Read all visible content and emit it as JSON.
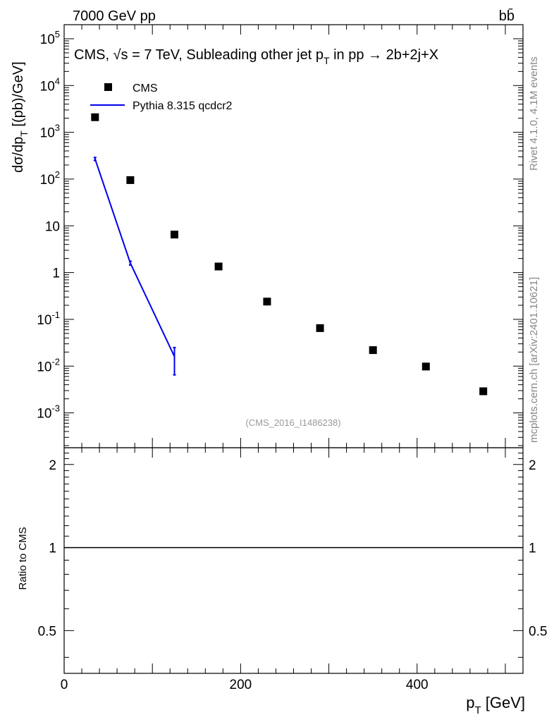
{
  "header": {
    "energy_label": "7000 GeV pp",
    "process_label": "bb̄"
  },
  "side_labels": {
    "rivet": "Rivet 4.1.0,  4.1M events",
    "source": "mcplots.cern.ch [arXiv:2401.10621]"
  },
  "chart_data": [
    {
      "type": "scatter",
      "panel": "main",
      "title": "CMS, √s = 7 TeV, Subleading other jet p_T in pp →  2b+2j+X",
      "ylabel": "dσ/dp_T  [(pb)/GeV]",
      "xlabel": "",
      "yscale": "log",
      "ylim": [
        0.00018,
        200000
      ],
      "xlim": [
        0,
        520
      ],
      "analysis_id": "(CMS_2016_I1486238)",
      "y_ticks": [
        {
          "v": 100000,
          "label": "10^5"
        },
        {
          "v": 10000,
          "label": "10^4"
        },
        {
          "v": 1000,
          "label": "10^3"
        },
        {
          "v": 100,
          "label": "10^2"
        },
        {
          "v": 10,
          "label": "10"
        },
        {
          "v": 1,
          "label": "1"
        },
        {
          "v": 0.1,
          "label": "10^-1"
        },
        {
          "v": 0.01,
          "label": "10^-2"
        },
        {
          "v": 0.001,
          "label": "10^-3"
        }
      ],
      "legend": [
        {
          "name": "CMS",
          "marker": "square",
          "color": "#000000"
        },
        {
          "name": "Pythia 8.315 qcdcr2",
          "marker": "line",
          "color": "#0000ee"
        }
      ],
      "series": [
        {
          "name": "CMS",
          "color": "#000000",
          "x": [
            35,
            75,
            125,
            175,
            230,
            290,
            350,
            410,
            475
          ],
          "y": [
            2100,
            95,
            6.5,
            1.35,
            0.24,
            0.065,
            0.022,
            0.0098,
            0.0029
          ]
        },
        {
          "name": "Pythia 8.315 qcdcr2",
          "color": "#0000ee",
          "x": [
            35,
            75,
            125
          ],
          "y": [
            270,
            1.6,
            0.016
          ],
          "err_lo": [
            250,
            1.45,
            0.0065
          ],
          "err_hi": [
            290,
            1.75,
            0.025
          ]
        }
      ]
    },
    {
      "type": "line",
      "panel": "ratio",
      "ylabel": "Ratio to CMS",
      "xlabel": "p_T [GeV]",
      "yscale": "log",
      "ylim": [
        0.35,
        2.3
      ],
      "xlim": [
        0,
        520
      ],
      "y_ticks": [
        {
          "v": 2,
          "label": "2"
        },
        {
          "v": 1,
          "label": "1"
        },
        {
          "v": 0.5,
          "label": "0.5"
        }
      ],
      "x_ticks": [
        {
          "v": 0,
          "label": "0"
        },
        {
          "v": 200,
          "label": "200"
        },
        {
          "v": 400,
          "label": "400"
        }
      ],
      "series": [
        {
          "name": "reference",
          "x": [
            0,
            520
          ],
          "y": [
            1,
            1
          ],
          "color": "#000000"
        }
      ]
    }
  ]
}
